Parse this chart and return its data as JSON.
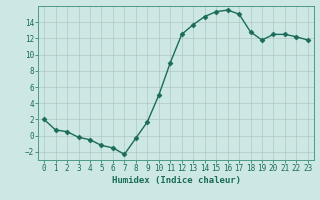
{
  "x": [
    0,
    1,
    2,
    3,
    4,
    5,
    6,
    7,
    8,
    9,
    10,
    11,
    12,
    13,
    14,
    15,
    16,
    17,
    18,
    19,
    20,
    21,
    22,
    23
  ],
  "y": [
    2,
    0.7,
    0.5,
    -0.2,
    -0.5,
    -1.2,
    -1.5,
    -2.3,
    -0.3,
    1.7,
    5.0,
    9.0,
    12.5,
    13.7,
    14.7,
    15.3,
    15.5,
    15.0,
    12.8,
    11.8,
    12.5,
    12.5,
    12.2,
    11.8
  ],
  "line_color": "#1a6b5a",
  "marker": "D",
  "markersize": 2.5,
  "linewidth": 1.0,
  "bg_color": "#cde8e4",
  "grid_color": "#b0c8c4",
  "xlabel": "Humidex (Indice chaleur)",
  "ylim": [
    -3,
    16
  ],
  "xlim": [
    -0.5,
    23.5
  ],
  "yticks": [
    -2,
    0,
    2,
    4,
    6,
    8,
    10,
    12,
    14
  ],
  "xticks": [
    0,
    1,
    2,
    3,
    4,
    5,
    6,
    7,
    8,
    9,
    10,
    11,
    12,
    13,
    14,
    15,
    16,
    17,
    18,
    19,
    20,
    21,
    22,
    23
  ],
  "xlabel_fontsize": 6.5,
  "tick_fontsize": 5.5,
  "font_color": "#1a6b5a",
  "spine_color": "#4a9a8a"
}
